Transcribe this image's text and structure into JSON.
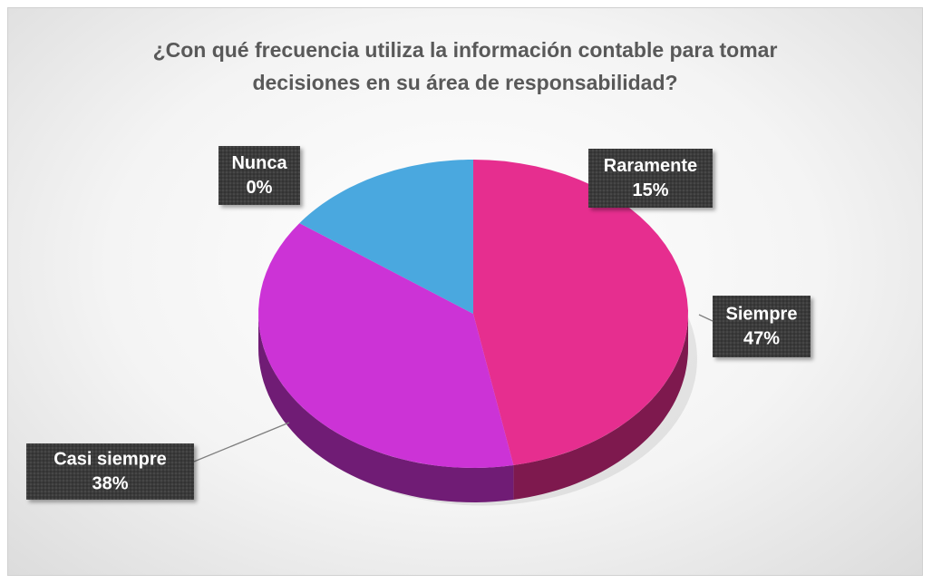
{
  "chart_data": {
    "type": "pie",
    "title": "¿Con qué frecuencia utiliza la información contable para tomar decisiones en su área de responsabilidad?",
    "categories": [
      "Siempre",
      "Casi siempre",
      "Raramente",
      "Nunca"
    ],
    "values": [
      47,
      38,
      15,
      0
    ],
    "value_labels": [
      "47%",
      "38%",
      "15%",
      "0%"
    ],
    "colors": [
      "#e62e8f",
      "#cc33d6",
      "#4aa8df",
      "#9b59b6"
    ]
  }
}
